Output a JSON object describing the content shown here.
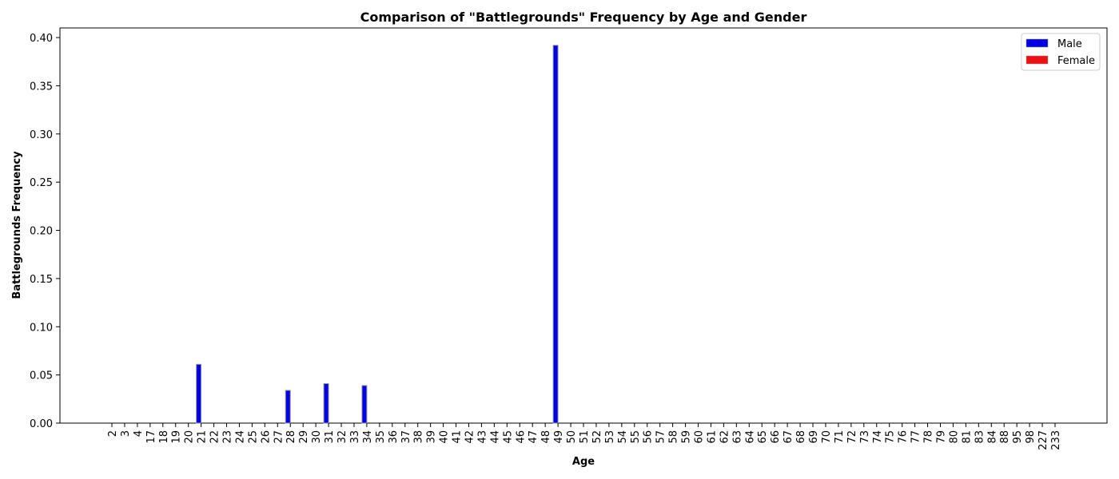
{
  "chart_data": {
    "type": "bar",
    "title": "Comparison of \"Battlegrounds\" Frequency by Age and Gender",
    "xlabel": "Age",
    "ylabel": "Battlegrounds Frequency",
    "ylim": [
      0,
      0.41
    ],
    "yticks": [
      0.0,
      0.05,
      0.1,
      0.15,
      0.2,
      0.25,
      0.3,
      0.35,
      0.4
    ],
    "grid": false,
    "legend_position": "top-right",
    "categories": [
      "2",
      "3",
      "4",
      "17",
      "18",
      "19",
      "20",
      "21",
      "22",
      "23",
      "24",
      "25",
      "26",
      "27",
      "28",
      "29",
      "30",
      "31",
      "32",
      "33",
      "34",
      "35",
      "36",
      "37",
      "38",
      "39",
      "40",
      "41",
      "42",
      "43",
      "44",
      "45",
      "46",
      "47",
      "48",
      "49",
      "50",
      "51",
      "52",
      "53",
      "54",
      "55",
      "56",
      "57",
      "58",
      "59",
      "60",
      "61",
      "62",
      "63",
      "64",
      "65",
      "66",
      "67",
      "68",
      "69",
      "70",
      "71",
      "72",
      "73",
      "74",
      "75",
      "76",
      "77",
      "78",
      "79",
      "80",
      "81",
      "83",
      "84",
      "88",
      "95",
      "98",
      "227",
      "233"
    ],
    "series": [
      {
        "name": "Male",
        "color": "#0000e6",
        "values": [
          0,
          0,
          0,
          0,
          0,
          0,
          0,
          0.061,
          0,
          0,
          0,
          0,
          0,
          0,
          0.034,
          0,
          0,
          0.041,
          0,
          0,
          0.039,
          0,
          0,
          0,
          0,
          0,
          0,
          0,
          0,
          0,
          0,
          0,
          0,
          0,
          0,
          0.392,
          0,
          0,
          0,
          0,
          0,
          0,
          0,
          0,
          0,
          0,
          0,
          0,
          0,
          0,
          0,
          0,
          0,
          0,
          0,
          0,
          0,
          0,
          0,
          0,
          0,
          0,
          0,
          0,
          0,
          0,
          0,
          0,
          0,
          0,
          0,
          0,
          0,
          0,
          0
        ]
      },
      {
        "name": "Female",
        "color": "#ee1111",
        "values": [
          0,
          0,
          0,
          0,
          0,
          0,
          0,
          0,
          0,
          0,
          0,
          0,
          0,
          0,
          0,
          0,
          0,
          0,
          0,
          0,
          0,
          0,
          0,
          0,
          0,
          0,
          0,
          0,
          0,
          0,
          0,
          0,
          0,
          0,
          0,
          0,
          0,
          0,
          0,
          0,
          0,
          0,
          0,
          0,
          0,
          0,
          0,
          0,
          0,
          0,
          0,
          0,
          0,
          0,
          0,
          0,
          0,
          0,
          0,
          0,
          0,
          0,
          0,
          0,
          0,
          0,
          0,
          0,
          0,
          0,
          0,
          0,
          0,
          0,
          0
        ]
      }
    ]
  }
}
